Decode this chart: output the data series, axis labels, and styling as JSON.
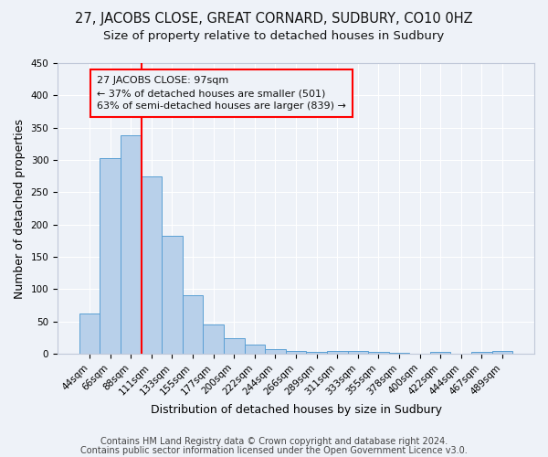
{
  "title": "27, JACOBS CLOSE, GREAT CORNARD, SUDBURY, CO10 0HZ",
  "subtitle": "Size of property relative to detached houses in Sudbury",
  "xlabel": "Distribution of detached houses by size in Sudbury",
  "ylabel": "Number of detached properties",
  "footnote1": "Contains HM Land Registry data © Crown copyright and database right 2024.",
  "footnote2": "Contains public sector information licensed under the Open Government Licence v3.0.",
  "bar_labels": [
    "44sqm",
    "66sqm",
    "88sqm",
    "111sqm",
    "133sqm",
    "155sqm",
    "177sqm",
    "200sqm",
    "222sqm",
    "244sqm",
    "266sqm",
    "289sqm",
    "311sqm",
    "333sqm",
    "355sqm",
    "378sqm",
    "400sqm",
    "422sqm",
    "444sqm",
    "467sqm",
    "489sqm"
  ],
  "bar_values": [
    62,
    303,
    338,
    275,
    183,
    90,
    45,
    24,
    14,
    7,
    5,
    3,
    5,
    5,
    3,
    1,
    0,
    3,
    0,
    3,
    4
  ],
  "bar_color": "#b8d0ea",
  "bar_edge_color": "#5a9fd4",
  "bar_width": 1.0,
  "vline_x": 2.5,
  "vline_color": "red",
  "annotation_line1": "27 JACOBS CLOSE: 97sqm",
  "annotation_line2": "← 37% of detached houses are smaller (501)",
  "annotation_line3": "63% of semi-detached houses are larger (839) →",
  "ylim": [
    0,
    450
  ],
  "yticks": [
    0,
    50,
    100,
    150,
    200,
    250,
    300,
    350,
    400,
    450
  ],
  "bg_color": "#eef2f8",
  "grid_color": "#ffffff",
  "title_fontsize": 10.5,
  "subtitle_fontsize": 9.5,
  "axis_label_fontsize": 9,
  "tick_fontsize": 7.5,
  "annotation_fontsize": 8,
  "footnote_fontsize": 7
}
